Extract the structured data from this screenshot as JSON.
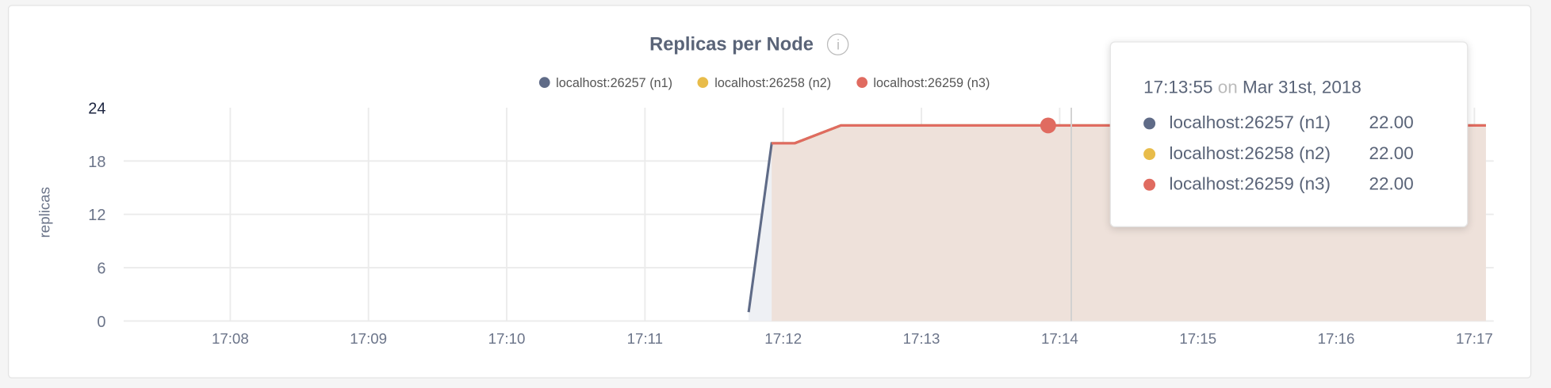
{
  "chart_data": {
    "type": "area",
    "title": "Replicas per Node",
    "ylabel": "replicas",
    "ylim": [
      0,
      24
    ],
    "yticks": [
      "0",
      "6",
      "12",
      "18",
      "24"
    ],
    "xlim": [
      "17:07:00",
      "17:17:08"
    ],
    "xticks": [
      "17:08",
      "17:09",
      "17:10",
      "17:11",
      "17:12",
      "17:13",
      "17:14",
      "17:15",
      "17:16",
      "17:17"
    ],
    "grid": true,
    "legend_position": "top-right",
    "series": [
      {
        "name": "localhost:26257 (n1)",
        "color": "#5f6b87",
        "x": [
          "17:11:45",
          "17:11:55",
          "17:12:05",
          "17:12:25",
          "17:17:05"
        ],
        "values": [
          1,
          20,
          20,
          22,
          22
        ]
      },
      {
        "name": "localhost:26258 (n2)",
        "color": "#e8bc4a",
        "x": [
          "17:11:55",
          "17:12:05",
          "17:12:25",
          "17:17:05"
        ],
        "values": [
          20,
          20,
          22,
          22
        ]
      },
      {
        "name": "localhost:26259 (n3)",
        "color": "#e06b60",
        "x": [
          "17:11:55",
          "17:12:05",
          "17:12:25",
          "17:17:05"
        ],
        "values": [
          20,
          20,
          22,
          22
        ]
      }
    ],
    "fill_color": "#eddfd8",
    "hover": {
      "x": "17:13:55",
      "value": 22
    }
  },
  "info_icon": "info-icon",
  "tooltip": {
    "time": "17:13:55",
    "on": "on",
    "date": "Mar 31st, 2018",
    "rows": [
      {
        "label": "localhost:26257 (n1)",
        "value": "22.00",
        "color": "#5f6b87"
      },
      {
        "label": "localhost:26258 (n2)",
        "value": "22.00",
        "color": "#e8bc4a"
      },
      {
        "label": "localhost:26259 (n3)",
        "value": "22.00",
        "color": "#e06b60"
      }
    ]
  }
}
